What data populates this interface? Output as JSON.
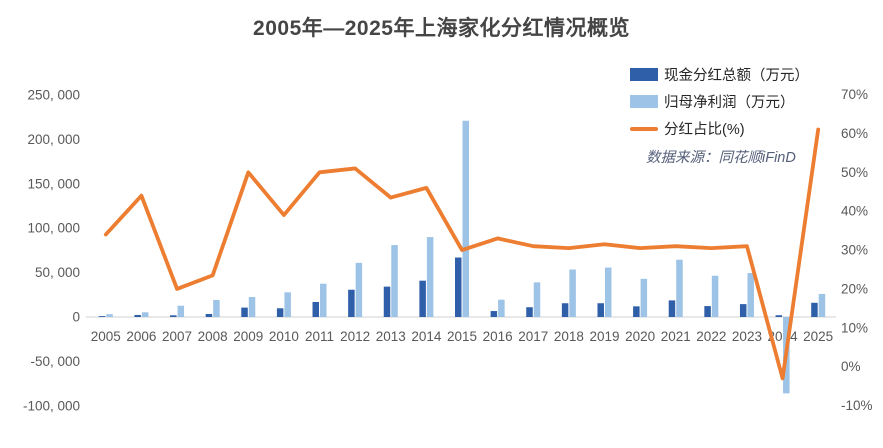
{
  "page": {
    "background": "#ffffff"
  },
  "chart": {
    "title": "2005年—2025年上海家化分红情况概览",
    "source_note": "数据来源：同花顺iFinD"
  },
  "legend": {
    "position": "top-right",
    "items": [
      {
        "label": "现金分红总额（万元）",
        "type": "bar",
        "color": "#2E5FA8"
      },
      {
        "label": "归母净利润（万元）",
        "type": "bar",
        "color": "#9DC3E6"
      },
      {
        "label": "分红占比(%)",
        "type": "line",
        "color": "#ED7D31"
      }
    ]
  },
  "colors": {
    "cash_dividend_bar": "#2E5FA8",
    "net_profit_bar": "#9DC3E6",
    "ratio_line": "#ED7D31",
    "axis_line": "#D9D9D9",
    "tick_text": "#595959",
    "title_text": "#454545",
    "source_text": "#55607a"
  },
  "chart_data": {
    "type": "combo-bar-line",
    "title": "2005年—2025年上海家化分红情况概览",
    "grid": false,
    "legend_position": "top-right",
    "categories": [
      "2005",
      "2006",
      "2007",
      "2008",
      "2009",
      "2010",
      "2011",
      "2012",
      "2013",
      "2014",
      "2015",
      "2016",
      "2017",
      "2018",
      "2019",
      "2020",
      "2021",
      "2022",
      "2023",
      "2024",
      "2025"
    ],
    "series": [
      {
        "name": "现金分红总额（万元）",
        "type": "bar",
        "axis": "left",
        "color": "#2E5FA8",
        "values": [
          1000,
          2300,
          1900,
          3400,
          10600,
          9800,
          16900,
          30700,
          34200,
          40900,
          67000,
          6700,
          11000,
          15500,
          15500,
          12000,
          18700,
          12300,
          14500,
          2000,
          16000
        ]
      },
      {
        "name": "归母净利润（万元）",
        "type": "bar",
        "axis": "left",
        "color": "#9DC3E6",
        "values": [
          3200,
          5300,
          12700,
          19200,
          22500,
          27800,
          37500,
          61000,
          81000,
          90000,
          221000,
          19500,
          39000,
          53500,
          55700,
          43000,
          64500,
          46500,
          49500,
          -86000,
          26000
        ]
      },
      {
        "name": "分红占比(%)",
        "type": "line",
        "axis": "right",
        "color": "#ED7D31",
        "values": [
          34,
          44,
          20,
          23.5,
          50,
          39,
          50,
          51,
          43.5,
          46,
          30,
          33,
          31,
          30.5,
          31.5,
          30.5,
          31,
          30.5,
          31,
          -3,
          61
        ]
      }
    ],
    "left_axis": {
      "title": "",
      "range": [
        -100000,
        250000
      ],
      "tick_values": [
        250000,
        200000,
        150000,
        100000,
        50000,
        0,
        -50000,
        -100000
      ],
      "tick_labels": [
        "250, 000",
        "200, 000",
        "150, 000",
        "100, 000",
        "50, 000",
        "0",
        "-50, 000",
        "-100, 000"
      ]
    },
    "right_axis": {
      "title": "",
      "range": [
        -10,
        70
      ],
      "tick_values": [
        70,
        60,
        50,
        40,
        30,
        20,
        10,
        0,
        -10
      ],
      "tick_labels": [
        "70%",
        "60%",
        "50%",
        "40%",
        "30%",
        "20%",
        "10%",
        "0%",
        "-10%"
      ]
    }
  }
}
